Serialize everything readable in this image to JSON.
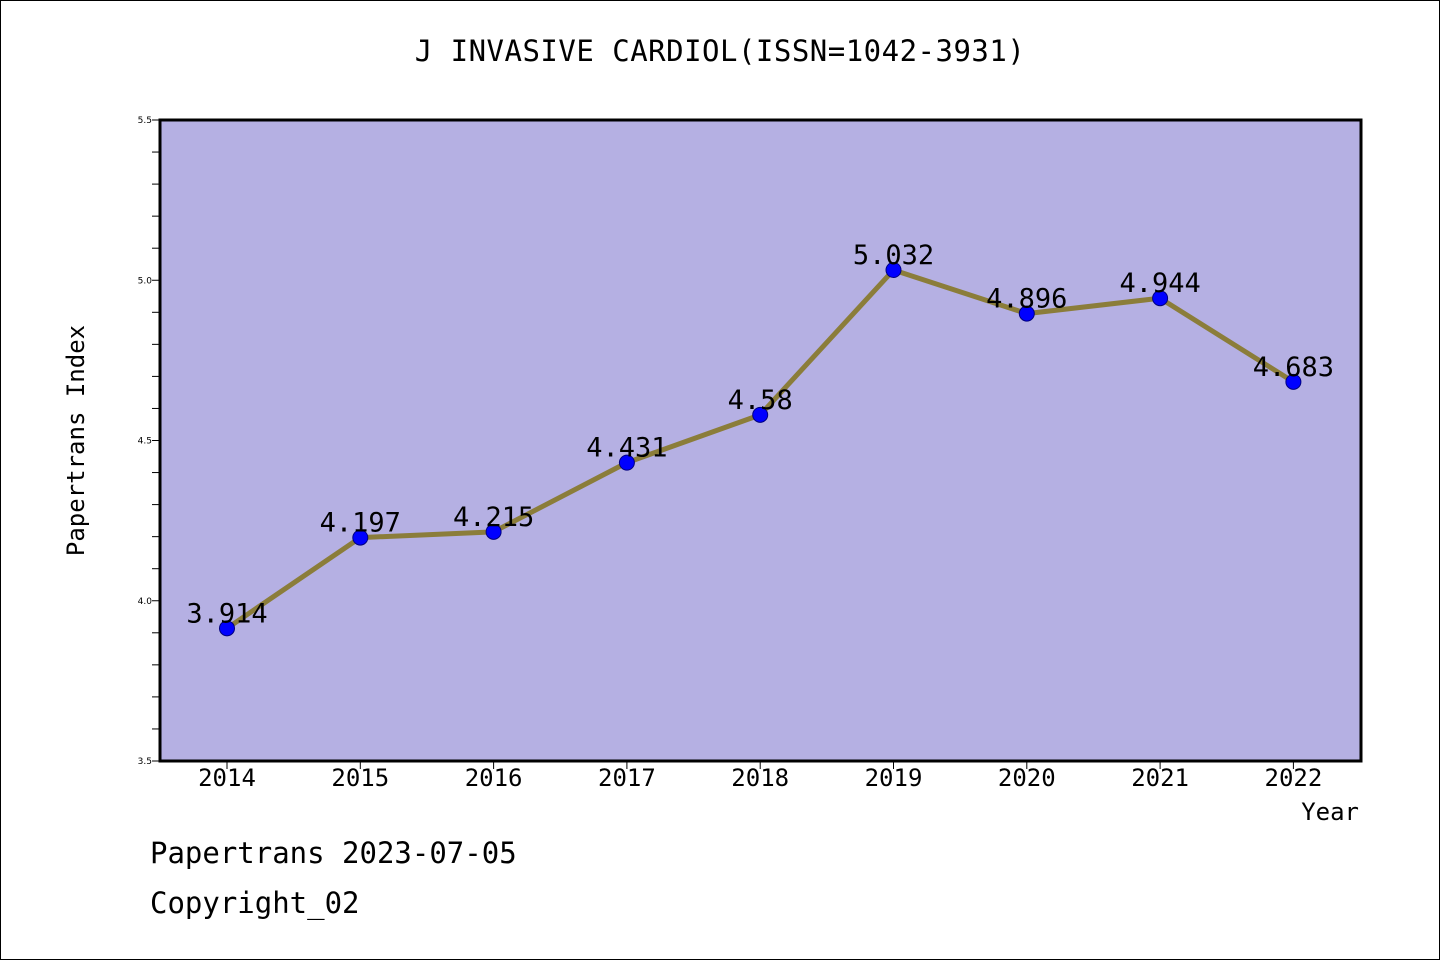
{
  "colors": {
    "plot_background": "#b5b0e3",
    "line": "#8b7d3a",
    "marker": "#0000ff",
    "marker_edge": "#000080",
    "axis": "#000000"
  },
  "chart_data": {
    "type": "line",
    "title": "J INVASIVE CARDIOL(ISSN=1042-3931)",
    "xlabel": "Year",
    "ylabel": "Papertrans Index",
    "x": [
      "2014",
      "2015",
      "2016",
      "2017",
      "2018",
      "2019",
      "2020",
      "2021",
      "2022"
    ],
    "series": [
      {
        "values": [
          3.914,
          4.197,
          4.215,
          4.431,
          4.58,
          5.032,
          4.896,
          4.944,
          4.683
        ],
        "data_labels": [
          "3.914",
          "4.197",
          "4.215",
          "4.431",
          "4.58",
          "5.032",
          "4.896",
          "4.944",
          "4.683"
        ]
      }
    ],
    "ylim": [
      3.5,
      5.5
    ],
    "y_ticks": [
      "3.5",
      "4.0",
      "4.5",
      "5.0",
      "5.5"
    ],
    "y_minor_step": 0.1,
    "grid": false,
    "legend": "none"
  },
  "footer": {
    "line1": "Papertrans 2023-07-05",
    "line2": "Copyright_02"
  }
}
